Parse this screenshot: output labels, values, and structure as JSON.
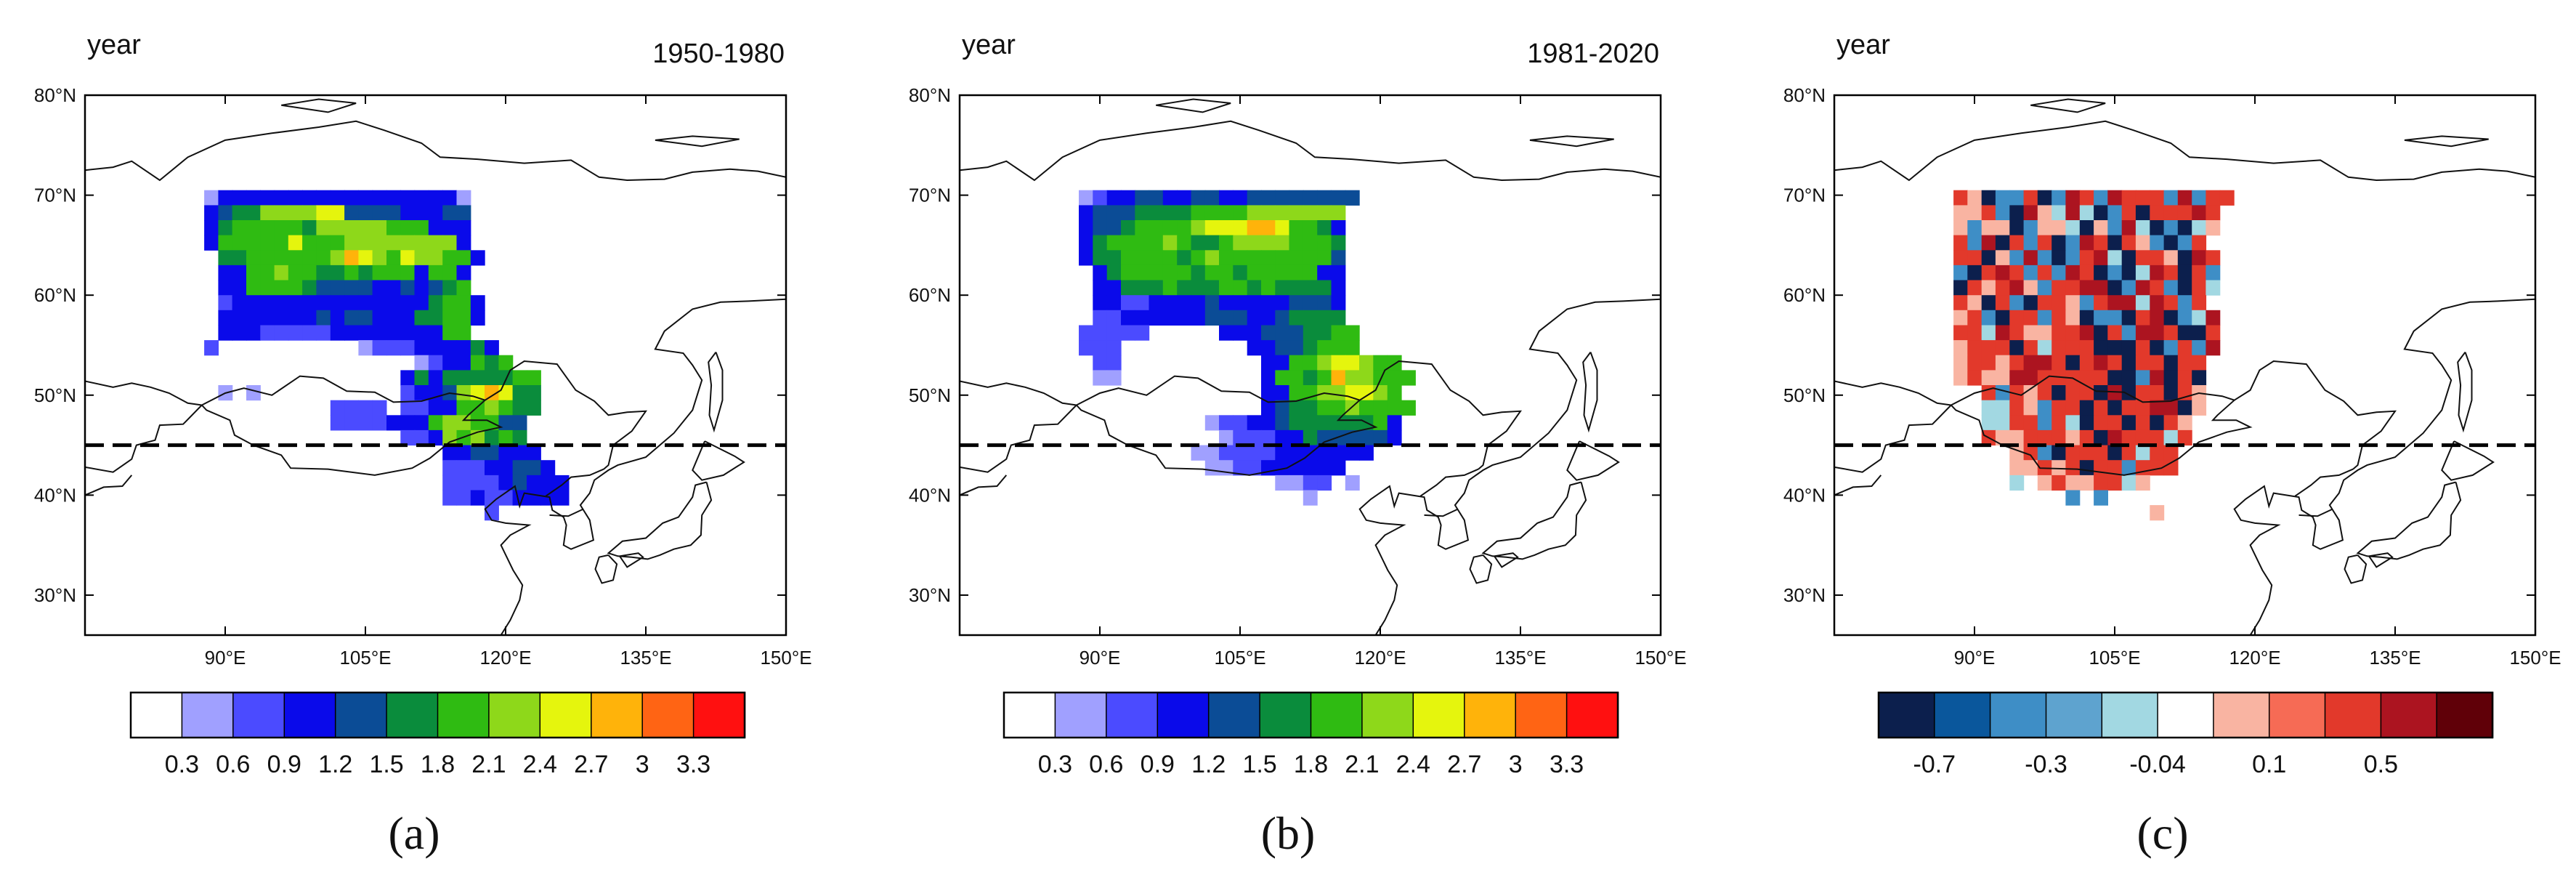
{
  "figure": {
    "panels": [
      {
        "id": "a",
        "unit": "year",
        "period": "1950-1980",
        "caption": "(a)",
        "lat_ticks": [
          "80°N",
          "70°N",
          "60°N",
          "50°N",
          "40°N",
          "30°N"
        ],
        "lon_ticks": [
          "90°E",
          "105°E",
          "120°E",
          "135°E",
          "150°E"
        ],
        "colorbar": {
          "colors": [
            "#ffffff",
            "#a0a0ff",
            "#4b4bff",
            "#0a0aea",
            "#0b4c96",
            "#0a8c3c",
            "#2fbb12",
            "#8ed81a",
            "#e5f50d",
            "#ffb30a",
            "#ff6414",
            "#ff1010"
          ],
          "labels": [
            "0.3",
            "0.6",
            "0.9",
            "1.2",
            "1.5",
            "1.8",
            "2.1",
            "2.4",
            "2.7",
            "3",
            "3.3"
          ]
        }
      },
      {
        "id": "b",
        "unit": "year",
        "period": "1981-2020",
        "caption": "(b)",
        "lat_ticks": [
          "80°N",
          "70°N",
          "60°N",
          "50°N",
          "40°N",
          "30°N"
        ],
        "lon_ticks": [
          "90°E",
          "105°E",
          "120°E",
          "135°E",
          "150°E"
        ],
        "colorbar": {
          "colors": [
            "#ffffff",
            "#a0a0ff",
            "#4b4bff",
            "#0a0aea",
            "#0b4c96",
            "#0a8c3c",
            "#2fbb12",
            "#8ed81a",
            "#e5f50d",
            "#ffb30a",
            "#ff6414",
            "#ff1010"
          ],
          "labels": [
            "0.3",
            "0.6",
            "0.9",
            "1.2",
            "1.5",
            "1.8",
            "2.1",
            "2.4",
            "2.7",
            "3",
            "3.3"
          ]
        }
      },
      {
        "id": "c",
        "unit": "year",
        "period": "",
        "caption": "(c)",
        "lat_ticks": [
          "80°N",
          "70°N",
          "60°N",
          "50°N",
          "40°N",
          "30°N"
        ],
        "lon_ticks": [
          "90°E",
          "105°E",
          "120°E",
          "135°E",
          "150°E"
        ],
        "colorbar": {
          "colors": [
            "#0c1f4d",
            "#0a579c",
            "#3e8ec6",
            "#5ea3cf",
            "#a2d8e2",
            "#ffffff",
            "#f9b4a2",
            "#f66b55",
            "#e2392b",
            "#ac1420",
            "#600008"
          ],
          "labels": [
            "-0.7",
            "",
            "-0.3",
            "",
            "-0.04",
            "",
            "0.1",
            "",
            "0.5",
            ""
          ]
        }
      }
    ],
    "map": {
      "lon_range": [
        75,
        150
      ],
      "lat_range": [
        26,
        80
      ],
      "reference_latitude": 45,
      "grid_lon": [
        93.75,
        140.25
      ],
      "grid_lat": [
        35.25,
        70.5
      ],
      "grid_step": 1.5
    }
  },
  "grids": {
    "a": [
      "..1333333333333333331.......",
      "..3455777788444433344.......",
      "..3566666577777666333.......",
      "..3666668666777777773.......",
      "...5566666679876877663......",
      "...336676655656663663.......",
      "...336666544443343456.......",
      "...2333333333333335663......",
      "...3333333434433355663......",
      "...333222223333333366.......",
      "..2..........1222333353.....",
      ".................1233656....",
      "................3535555566..",
      "...1.1..........2334789855..",
      "...........2222.2233667655..",
      "...........22223336776644...",
      "................223767565...",
      "...................3344333..",
      "...................22233443.",
      "...................222234333",
      "...................223223333",
      "......................2....."
    ],
    "b": [
      "..12334433443344444444......",
      "..3444555566667777777.......",
      "..3445666678889986653.......",
      "..3566667655677776665.......",
      "..3556666567666666664.......",
      "...356666656656666633.......",
      "...335556555665655553.......",
      "...332233334333334443.......",
      "...223333334443345555.......",
      "..22222.....3334445566......",
      "..222.........33445666......",
      "...22..........3366788766...",
      "...11..........36656977666..",
      "...............3366778876...",
      "...............34556676666..",
      "...........12233455555563...",
      "............1222335444443...",
      "..........1122223333333.....",
      "...........1122333333.......",
      "................1122.1......",
      "..................1........."
    ],
    "c": [
      "..+-Abb+AbB+bB+++bBb++......",
      "..--+bAB-aBaAb+A+++B+.......",
      "..-b--Ab--aA-bBaAbAa-.......",
      "..+bBA+b+AbB+A+-bAb+........",
      "..++A-bBbAb+BaA++-AB+.......",
      "..bA+B+b+bB+AbAaB+A+b.......",
      "..A+-+B-b++BBAbB+bA+a.......",
      "..+-A+bA++-b+BBaB+b+........",
      "..-+bA++b+-AbbA+BAbaB.......",
      "..++aB+--++BA+bBB+AA+.......",
      "..-+++A+a+++AAA+Ab+bB.......",
      "..-++-+BB+A+B+A++A++........",
      "..-+--BB+++++AAbBA+A........",
      "....+b+-+A++ABA++A+-........",
      "....aa+-b++A+A++BBA-........",
      "....aa++b+aA++A+A+-.........",
      "....+--+++-+AB+++a+.........",
      "......-+bA+++A+a++..........",
      "......--+-+A++b+++..........",
      "......a.-+--++a-............",
      "..........b.b...............",
      "................-..........."
    ]
  }
}
